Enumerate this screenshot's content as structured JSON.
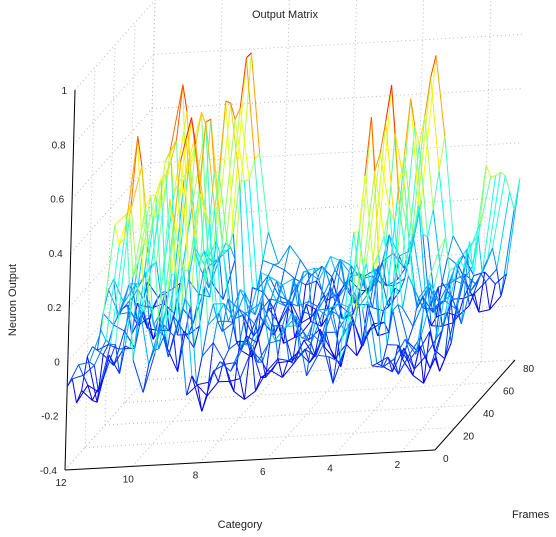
{
  "chart_data": {
    "type": "mesh3d",
    "title": "Output Matrix",
    "xlabel": "Category",
    "ylabel": "Frames",
    "zlabel": "Neuron Output",
    "xlim": [
      1,
      12
    ],
    "ylim": [
      0,
      80
    ],
    "zlim": [
      -0.4,
      1
    ],
    "xticks": [
      "12",
      "10",
      "8",
      "6",
      "4",
      "2"
    ],
    "yticks": [
      "0",
      "20",
      "40",
      "60",
      "80"
    ],
    "zticks": [
      "1",
      "0.8",
      "0.6",
      "0.4",
      "0.2",
      "0",
      "-0.2",
      "-0.4"
    ],
    "grid": true,
    "colormap": "jet",
    "peaks": [
      {
        "category": 10.5,
        "max_output": 0.9
      },
      {
        "category": 9,
        "max_output": 0.93
      },
      {
        "category": 3.5,
        "max_output": 0.88
      },
      {
        "category": 1,
        "max_output": 0.45
      }
    ]
  }
}
